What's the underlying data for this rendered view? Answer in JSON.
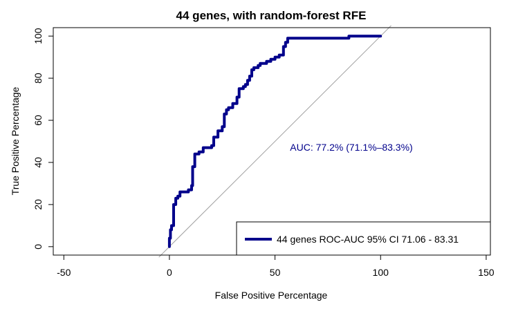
{
  "chart_data": {
    "type": "line",
    "title": "44 genes, with random-forest RFE",
    "xlabel": "False Positive Percentage",
    "ylabel": "True Positive Percentage",
    "xlim": [
      -55,
      152
    ],
    "ylim": [
      -4,
      104
    ],
    "xticks": [
      -50,
      0,
      50,
      100,
      150
    ],
    "yticks": [
      0,
      20,
      40,
      60,
      80,
      100
    ],
    "grid": false,
    "legend_position": "bottom-right",
    "colors": {
      "roc": "#00008B",
      "diagonal": "#A0A0A0",
      "frame": "#000000"
    },
    "annotation": "AUC: 77.2% (71.1%–83.3%)",
    "reference_line": {
      "x": [
        -5,
        105
      ],
      "y": [
        -5,
        105
      ]
    },
    "series": [
      {
        "name": "44 genes ROC-AUC 95% CI  71.06 - 83.31",
        "x": [
          0,
          0,
          0.5,
          0.5,
          1,
          1,
          2,
          2,
          3,
          3,
          4,
          4,
          5,
          5,
          6,
          6,
          9,
          9,
          10.5,
          10.5,
          11,
          11,
          12,
          12,
          14,
          14,
          16,
          16,
          20,
          20,
          21,
          21,
          23,
          23,
          25,
          25,
          26,
          26,
          27,
          27,
          28,
          28,
          30,
          30,
          32,
          32,
          33,
          33,
          35,
          35,
          36,
          36,
          37,
          37,
          38,
          38,
          39,
          39,
          40,
          40,
          41,
          41,
          42,
          42,
          43,
          43,
          44,
          44,
          46,
          46,
          48,
          48,
          50,
          50,
          52,
          52,
          54,
          54,
          55,
          55,
          56,
          56,
          58,
          58,
          85,
          85,
          88,
          88,
          100
        ],
        "y": [
          0,
          4,
          4,
          8,
          8,
          10,
          10,
          20,
          20,
          23,
          23,
          24,
          24,
          26,
          26,
          26,
          26,
          27,
          27,
          29,
          29,
          38,
          38,
          44,
          44,
          45,
          45,
          47,
          47,
          48,
          48,
          52,
          52,
          55,
          55,
          57,
          57,
          63,
          63,
          65,
          65,
          66,
          66,
          68,
          68,
          71,
          71,
          75,
          75,
          76,
          76,
          77,
          77,
          79,
          79,
          81,
          81,
          84,
          84,
          85,
          85,
          85,
          85,
          86,
          86,
          87,
          87,
          87,
          87,
          88,
          88,
          89,
          89,
          90,
          90,
          91,
          91,
          95,
          95,
          97,
          97,
          99,
          99,
          99,
          99,
          100,
          100,
          100,
          100
        ]
      }
    ]
  }
}
